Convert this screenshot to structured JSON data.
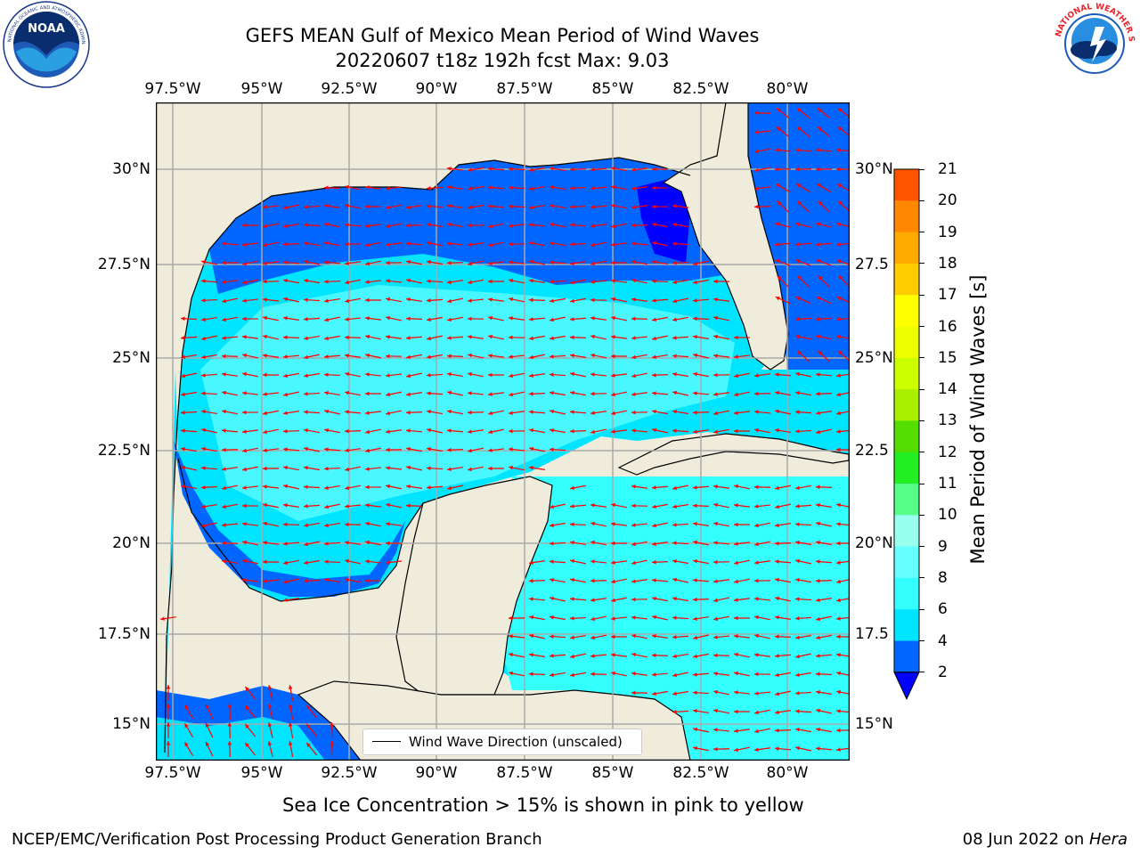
{
  "title": {
    "line1": "GEFS MEAN Gulf of Mexico Mean Period of Wind Waves",
    "line2": "20220607 t18z 192h fcst   Max: 9.03"
  },
  "logos": {
    "left": {
      "icon": "noaa-logo",
      "text": "NOAA",
      "ring_text": "NATIONAL OCEANIC AND ATMOSPHERIC ADMINISTRATION · U.S. DEPARTMENT OF COMMERCE"
    },
    "right": {
      "icon": "nws-logo",
      "ring_text": "NATIONAL WEATHER SERVICE"
    }
  },
  "map": {
    "lon_ticks": [
      "97.5°W",
      "95°W",
      "92.5°W",
      "90°W",
      "87.5°W",
      "85°W",
      "82.5°W",
      "80°W"
    ],
    "lat_ticks_left": [
      "30°N",
      "27.5°N",
      "25°N",
      "22.5°N",
      "20°N",
      "17.5°N",
      "15°N"
    ],
    "lat_ticks_right": [
      "30°N",
      "27.5",
      "25°N",
      "22.5",
      "20°N",
      "17.5",
      "15°N"
    ],
    "legend": "Wind Wave Direction (unscaled)",
    "land_color": "#efecdc",
    "arrow_color": "#ff0000"
  },
  "colorbar": {
    "label": "Mean Period of Wind Waves [s]",
    "ticks": [
      "2",
      "4",
      "6",
      "8",
      "9",
      "10",
      "11",
      "12",
      "13",
      "14",
      "15",
      "16",
      "17",
      "18",
      "19",
      "20",
      "21"
    ],
    "colors": [
      "#0066ff",
      "#00e5ff",
      "#33ffff",
      "#66ffff",
      "#99ffee",
      "#55ff88",
      "#22ee22",
      "#55dd00",
      "#aaee00",
      "#ccff00",
      "#eeff00",
      "#ffff00",
      "#ffcc00",
      "#ffaa00",
      "#ff8800",
      "#ff5500",
      "#ff2200",
      "#ff0000"
    ],
    "under_color": "#0000ff"
  },
  "note": "Sea Ice Concentration > 15% is shown in pink to yellow",
  "footer": {
    "left": "NCEP/EMC/Verification Post Processing Product Generation Branch",
    "right_prefix": "08 Jun 2022 on ",
    "right_host": "Hera"
  }
}
